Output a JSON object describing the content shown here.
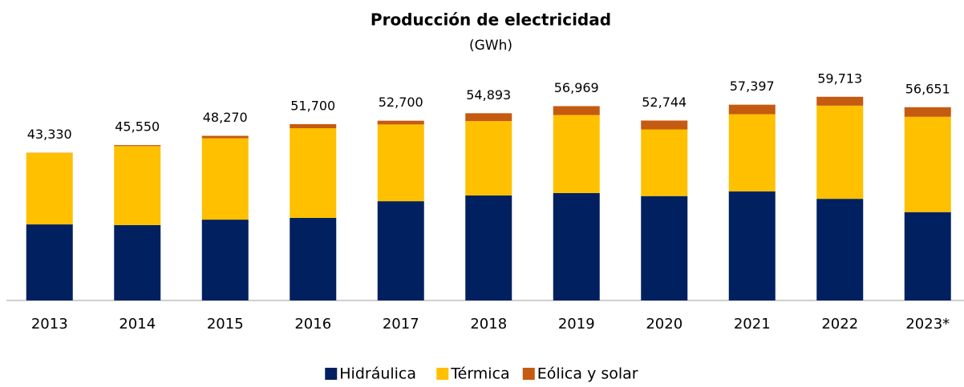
{
  "chart_data": {
    "type": "stacked_bar",
    "title": "Producción de electricidad",
    "subtitle": "(GWh)",
    "categories": [
      "2013",
      "2014",
      "2015",
      "2016",
      "2017",
      "2018",
      "2019",
      "2020",
      "2021",
      "2022",
      "2023*"
    ],
    "series": [
      {
        "name": "Hidráulica",
        "color": "#002060",
        "values": [
          22300,
          22100,
          23700,
          24200,
          29100,
          30800,
          31500,
          30600,
          32000,
          29800,
          25900
        ]
      },
      {
        "name": "Térmica",
        "color": "#FFC000",
        "values": [
          20980,
          23150,
          23870,
          26300,
          22500,
          21793,
          22869,
          19544,
          22597,
          27313,
          27951
        ]
      },
      {
        "name": "Eólica y solar",
        "color": "#C55A11",
        "values": [
          50,
          300,
          700,
          1200,
          1100,
          2300,
          2600,
          2600,
          2800,
          2600,
          2800
        ]
      }
    ],
    "totals": {
      "values": [
        43330,
        45550,
        48270,
        51700,
        52700,
        54893,
        56969,
        52744,
        57397,
        59713,
        56651
      ],
      "value_labels": [
        "43,330",
        "45,550",
        "48,270",
        "51,700",
        "52,700",
        "54,893",
        "56,969",
        "52,744",
        "57,397",
        "59,713",
        "56,651"
      ]
    },
    "ylim": [
      0,
      70000
    ],
    "legend": "bottom"
  }
}
